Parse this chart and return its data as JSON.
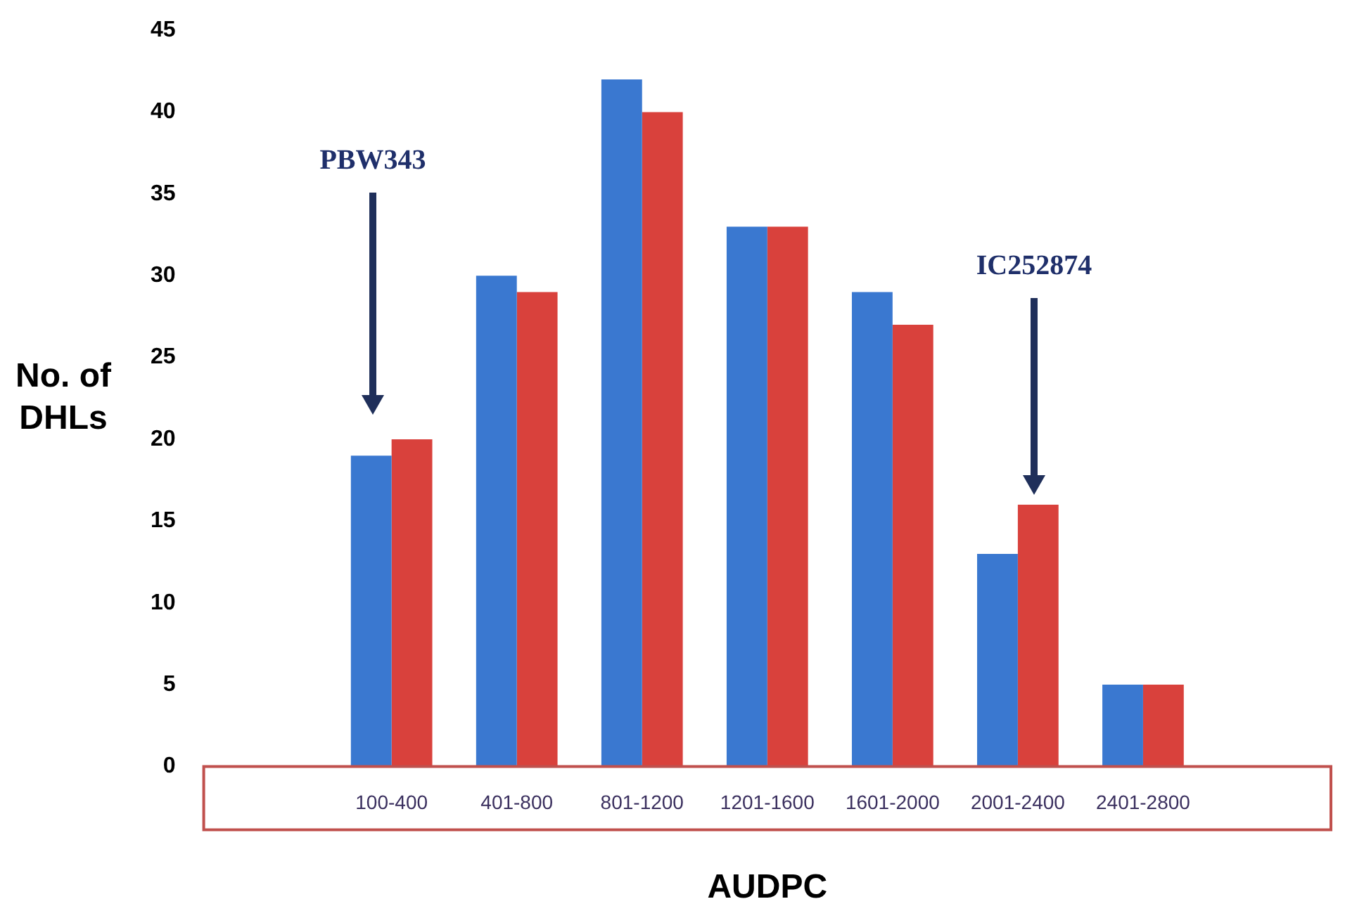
{
  "chart_data": {
    "type": "bar",
    "categories": [
      null,
      "100-400",
      "401-800",
      "801-1200",
      "1201-1600",
      "1601-2000",
      "2001-2400",
      "2401-2800",
      null
    ],
    "series": [
      {
        "color": "#3a78d0",
        "values": [
          null,
          19,
          30,
          42,
          33,
          29,
          13,
          5,
          null
        ]
      },
      {
        "color": "#d9413c",
        "values": [
          null,
          20,
          29,
          40,
          33,
          27,
          16,
          5,
          null
        ]
      }
    ],
    "xlabel": "AUDPC",
    "ylabel": "No. of DHLs",
    "ylim": [
      0,
      45
    ],
    "yticks": [
      0,
      5,
      10,
      15,
      20,
      25,
      30,
      35,
      40,
      45
    ],
    "grid": false,
    "legend": false,
    "annotations": [
      "PBW343",
      "IC252874"
    ]
  }
}
